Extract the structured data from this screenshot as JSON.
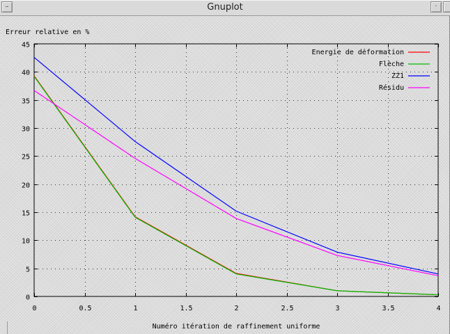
{
  "window": {
    "title": "Gnuplot",
    "menu_glyph": "–",
    "minimize_glyph": "·",
    "maximize_glyph": ""
  },
  "chart_data": {
    "type": "line",
    "title": "",
    "ylabel": "Erreur relative en %",
    "xlabel": "Numéro itération de raffinement uniforme",
    "xlim": [
      0,
      4
    ],
    "ylim": [
      0,
      45
    ],
    "xticks": [
      0,
      0.5,
      1,
      1.5,
      2,
      2.5,
      3,
      3.5,
      4
    ],
    "xtick_labels": [
      "0",
      "0.5",
      "1",
      "1.5",
      "2",
      "2.5",
      "3",
      "3.5",
      "4"
    ],
    "yticks": [
      0,
      5,
      10,
      15,
      20,
      25,
      30,
      35,
      40,
      45
    ],
    "ytick_labels": [
      "0",
      "5",
      "10",
      "15",
      "20",
      "25",
      "30",
      "35",
      "40",
      "45"
    ],
    "grid": true,
    "legend_position": "top-right",
    "x": [
      0,
      1,
      2,
      3,
      4
    ],
    "series": [
      {
        "name": "Energie de déformation",
        "color": "#ff0000",
        "values": [
          39.3,
          14.2,
          4.1,
          1.0,
          0.3
        ]
      },
      {
        "name": "Flèche",
        "color": "#00c000",
        "values": [
          39.2,
          14.1,
          4.0,
          1.0,
          0.3
        ]
      },
      {
        "name": "ZZ1",
        "color": "#0000ff",
        "values": [
          42.6,
          27.6,
          15.2,
          7.9,
          4.0
        ]
      },
      {
        "name": "Résidu",
        "color": "#ff00ff",
        "values": [
          36.7,
          24.6,
          13.9,
          7.3,
          3.7
        ]
      }
    ]
  }
}
